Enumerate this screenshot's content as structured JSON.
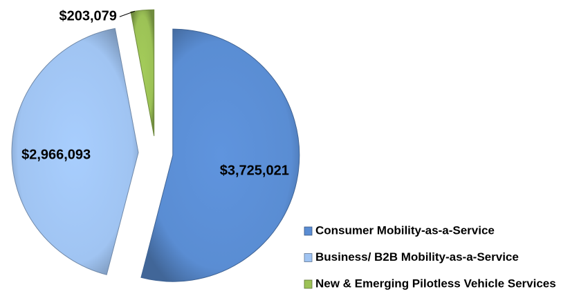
{
  "chart_data": {
    "type": "pie",
    "categories": [
      "Consumer Mobility-as-a-Service",
      "Business/ B2B Mobility-as-a-Service",
      "New & Emerging Pilotless Vehicle Services"
    ],
    "values": [
      3725021,
      2966093,
      203079
    ],
    "value_labels": [
      "$3,725,021",
      "$2,966,093",
      "$203,079"
    ],
    "colors": [
      "#5a8dd3",
      "#a0c4f2",
      "#9cc256"
    ],
    "legend": "bottom-right"
  }
}
